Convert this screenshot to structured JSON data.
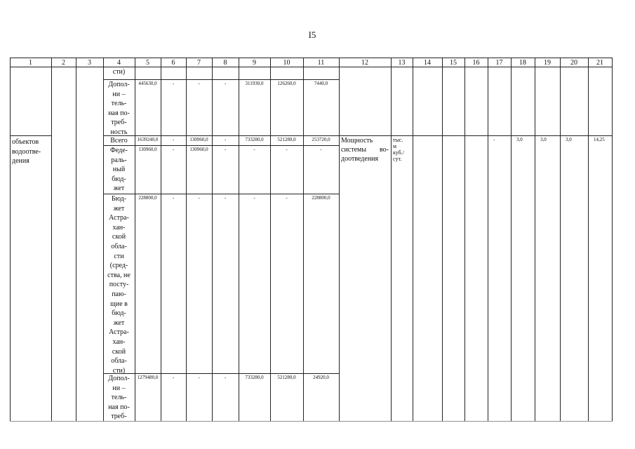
{
  "page_number": "I5",
  "table": {
    "header": [
      "1",
      "2",
      "3",
      "4",
      "5",
      "6",
      "7",
      "8",
      "9",
      "10",
      "11",
      "12",
      "13",
      "14",
      "15",
      "16",
      "17",
      "18",
      "19",
      "20",
      "21"
    ],
    "rows": [
      {
        "cells": [
          null,
          null,
          null,
          "сти)",
          null,
          null,
          null,
          null,
          null,
          null,
          null,
          null,
          null,
          null,
          null,
          null,
          null,
          null,
          null,
          null,
          null
        ]
      },
      {
        "cells": [
          null,
          null,
          null,
          "Допол-\nни –\nтель-\nная по-\nтреб-\nность",
          "445630,0",
          "-",
          "-",
          "-",
          "311930,0",
          "126260,0",
          "7440,0",
          null,
          null,
          null,
          null,
          null,
          null,
          null,
          null,
          null,
          null
        ]
      },
      {
        "cells": [
          "объектов\nводоотве-\nдения",
          null,
          null,
          "Всего",
          "1639240,0",
          "-",
          "130960,0",
          "-",
          "733280,0",
          "521280,0",
          "253720,0",
          "Мощность системы во-доотведения",
          "тыс.\nм\nкуб./\nсут.",
          null,
          null,
          null,
          "-",
          "3,0",
          "3,0",
          "3,0",
          "14,25"
        ]
      },
      {
        "cells": [
          null,
          null,
          null,
          "Феде-\nраль-\nный\nбюд-\nжет",
          "130960,0",
          "-",
          "130960,0",
          "-",
          "-",
          "-",
          "-",
          null,
          null,
          null,
          null,
          null,
          null,
          null,
          null,
          null,
          null
        ]
      },
      {
        "cells": [
          null,
          null,
          null,
          "Бюд-\nжет\nАстра-\nхан-\nской\nобла-\nсти\n(сред-\nства, не\nпосту-\nпаю-\nщие в\nбюд-\nжет\nАстра-\nхан-\nской\nобла-\nсти)",
          "228800,0",
          "-",
          "-",
          "-",
          "-",
          "-",
          "228800,0",
          null,
          null,
          null,
          null,
          null,
          null,
          null,
          null,
          null,
          null
        ]
      },
      {
        "cells": [
          null,
          null,
          null,
          "Допол-\nни –\nтель-\nная по-\nтреб-",
          "1279480,0",
          "-",
          "-",
          "-",
          "733280,0",
          "521280,0",
          "24920,0",
          null,
          null,
          null,
          null,
          null,
          null,
          null,
          null,
          null,
          null
        ]
      }
    ]
  }
}
